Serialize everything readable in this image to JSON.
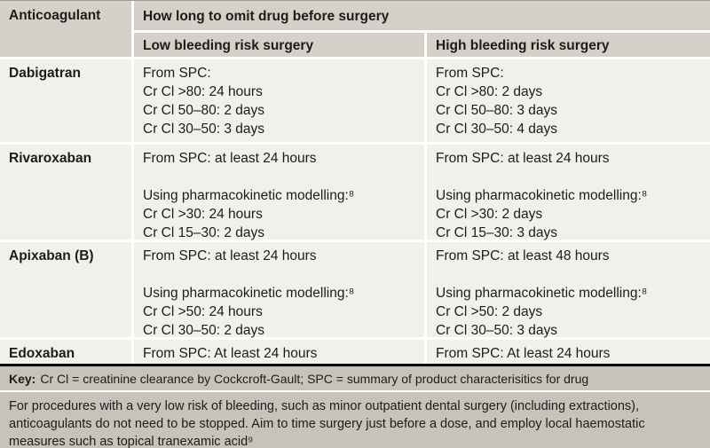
{
  "table": {
    "header": {
      "col1": "Anticoagulant",
      "col2": "How long to omit drug before surgery",
      "sub_low": "Low bleeding risk surgery",
      "sub_high": "High bleeding risk surgery"
    },
    "rows": [
      {
        "drug": "Dabigatran",
        "low": [
          "From SPC:",
          "Cr Cl >80: 24 hours",
          "Cr Cl 50–80: 2 days",
          "Cr Cl 30–50: 3 days"
        ],
        "high": [
          "From SPC:",
          "Cr Cl >80: 2 days",
          "Cr Cl 50–80: 3 days",
          "Cr Cl 30–50: 4 days"
        ]
      },
      {
        "drug": "Rivaroxaban",
        "low": [
          "From SPC: at least 24 hours",
          "",
          "Using pharmacokinetic modelling:⁸",
          "Cr Cl >30: 24 hours",
          "Cr Cl 15–30: 2 days"
        ],
        "high": [
          "From SPC: at least 24 hours",
          "",
          "Using pharmacokinetic modelling:⁸",
          "Cr Cl >30: 2 days",
          "Cr Cl 15–30: 3 days"
        ]
      },
      {
        "drug": "Apixaban (B)",
        "low": [
          "From SPC: at least 24 hours",
          "",
          "Using pharmacokinetic modelling:⁸",
          "Cr Cl >50: 24 hours",
          "Cr Cl 30–50: 2 days"
        ],
        "high": [
          "From SPC: at least 48 hours",
          "",
          "Using pharmacokinetic modelling:⁸",
          "Cr Cl >50: 2 days",
          "Cr Cl 30–50: 3 days"
        ]
      },
      {
        "drug": "Edoxaban",
        "low": [
          "From SPC: At least 24 hours"
        ],
        "high": [
          "From SPC: At least 24 hours"
        ]
      }
    ],
    "footer": {
      "key_label": "Key:",
      "key_text": "Cr Cl = creatinine clearance by Cockcroft-Gault; SPC = summary of product characterisitics for drug",
      "note": "For procedures with a very low risk of bleeding, such as minor outpatient dental surgery (including extractions), anticoagulants do not need to be stopped. Aim to time surgery just before a dose, and employ local haemostatic measures such as topical tranexamic acid⁹"
    },
    "colors": {
      "header_bg": "#d5d1c8",
      "body_bg": "#f2f0ea",
      "footer_bg": "#c6c3ba",
      "divider": "#000000",
      "separator": "#ffffff"
    }
  }
}
